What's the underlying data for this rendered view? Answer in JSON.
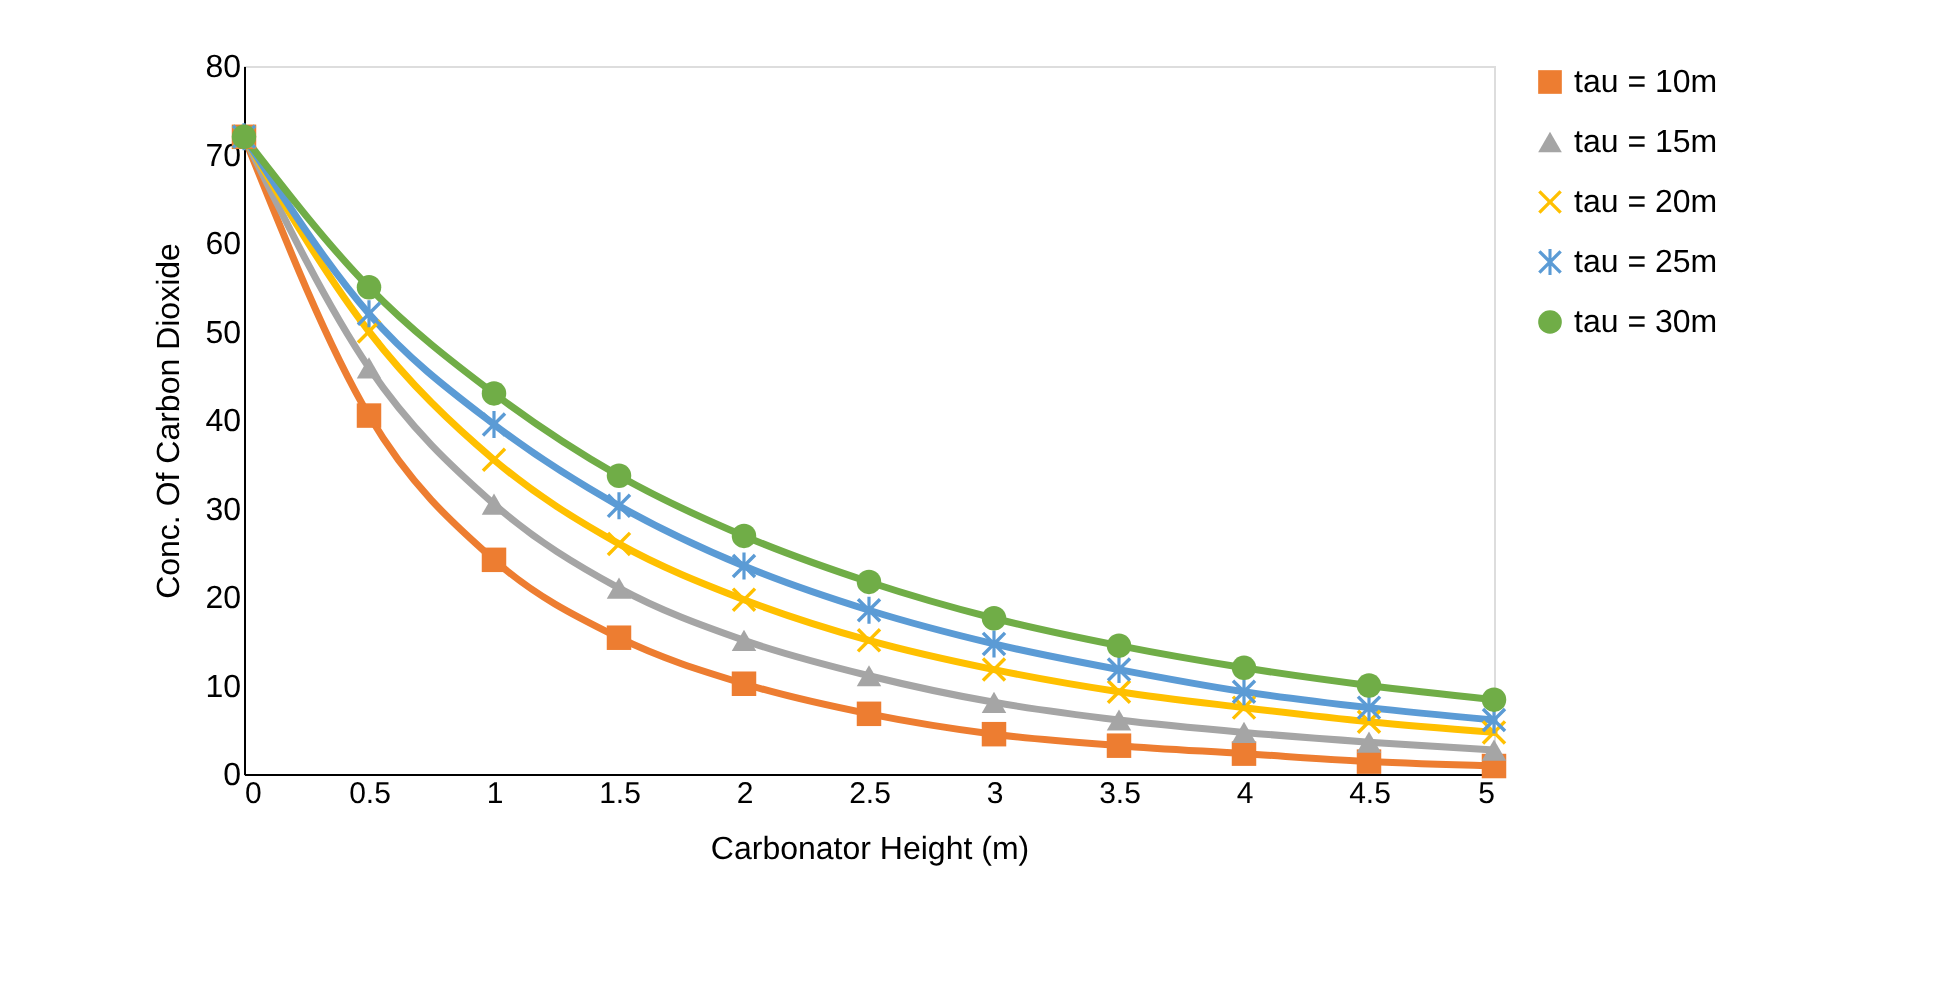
{
  "chart_data": {
    "type": "line",
    "xlabel": "Carbonator Height (m)",
    "ylabel": "Conc. Of Carbon Dioxide",
    "x": [
      0,
      0.5,
      1,
      1.5,
      2,
      2.5,
      3,
      3.5,
      4,
      4.5,
      5
    ],
    "xlim": [
      0,
      5
    ],
    "xticks": [
      0,
      0.5,
      1,
      1.5,
      2,
      2.5,
      3,
      3.5,
      4,
      4.5,
      5
    ],
    "ylim": [
      0,
      80
    ],
    "yticks": [
      0,
      10,
      20,
      30,
      40,
      50,
      60,
      70,
      80
    ],
    "grid": false,
    "legend": "right",
    "line_style": "solid",
    "series": [
      {
        "name": "tau = 10m",
        "color": "#ed7d31",
        "marker": "square",
        "values": [
          72,
          40.5,
          24.2,
          15.4,
          10.2,
          6.8,
          4.5,
          3.2,
          2.3,
          1.4,
          0.9
        ]
      },
      {
        "name": "tau = 15m",
        "color": "#a5a5a5",
        "marker": "triangle",
        "values": [
          72,
          45.9,
          30.5,
          21,
          15.1,
          11.1,
          8.1,
          6.1,
          4.7,
          3.6,
          2.7
        ]
      },
      {
        "name": "tau = 20m",
        "color": "#ffc000",
        "marker": "cross",
        "values": [
          72,
          50,
          35.5,
          26,
          19.7,
          15.1,
          11.8,
          9.3,
          7.5,
          5.9,
          4.7
        ]
      },
      {
        "name": "tau = 25m",
        "color": "#5b9bd5",
        "marker": "star",
        "values": [
          72,
          52,
          39.5,
          30.3,
          23.5,
          18.5,
          14.7,
          11.8,
          9.3,
          7.5,
          6.1
        ]
      },
      {
        "name": "tau = 30m",
        "color": "#70ad47",
        "marker": "circle",
        "values": [
          72,
          55,
          43,
          33.7,
          26.9,
          21.7,
          17.6,
          14.5,
          12,
          10,
          8.4
        ]
      }
    ]
  }
}
